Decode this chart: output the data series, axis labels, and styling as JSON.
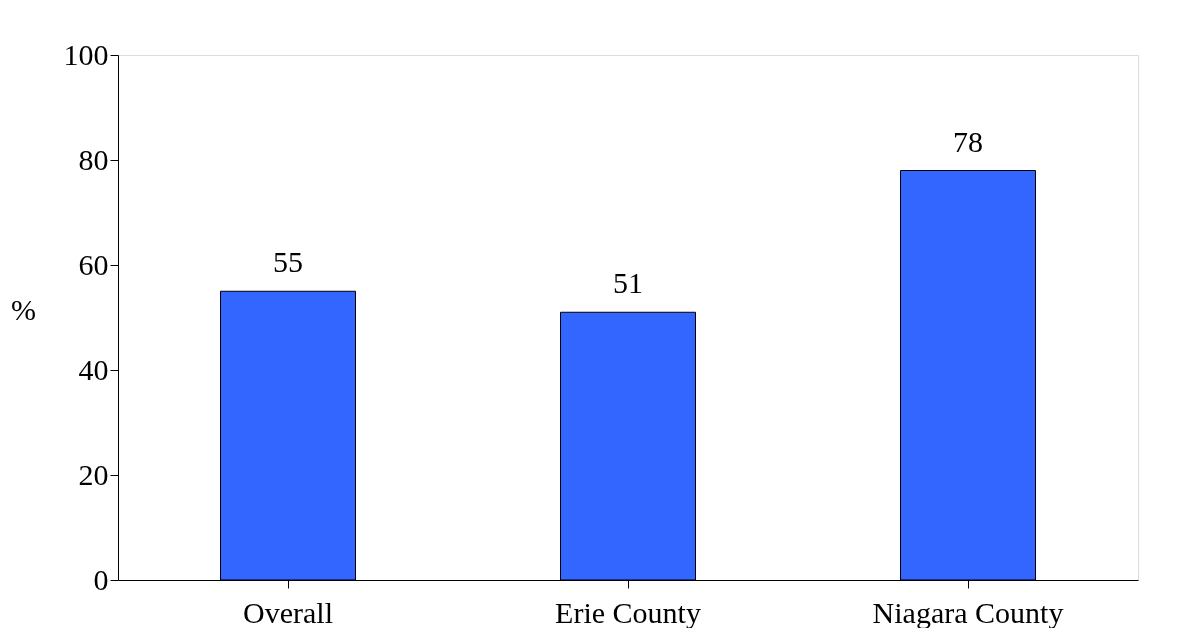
{
  "chart_data": {
    "type": "bar",
    "ylabel": "%",
    "categories": [
      "Overall",
      "Erie County",
      "Niagara County"
    ],
    "values": [
      55,
      51,
      78
    ],
    "color": "#3366ff",
    "ylim": [
      0,
      100
    ],
    "yticks": [
      0,
      20,
      40,
      60,
      80,
      100
    ],
    "grid": false,
    "data_labels": true
  }
}
